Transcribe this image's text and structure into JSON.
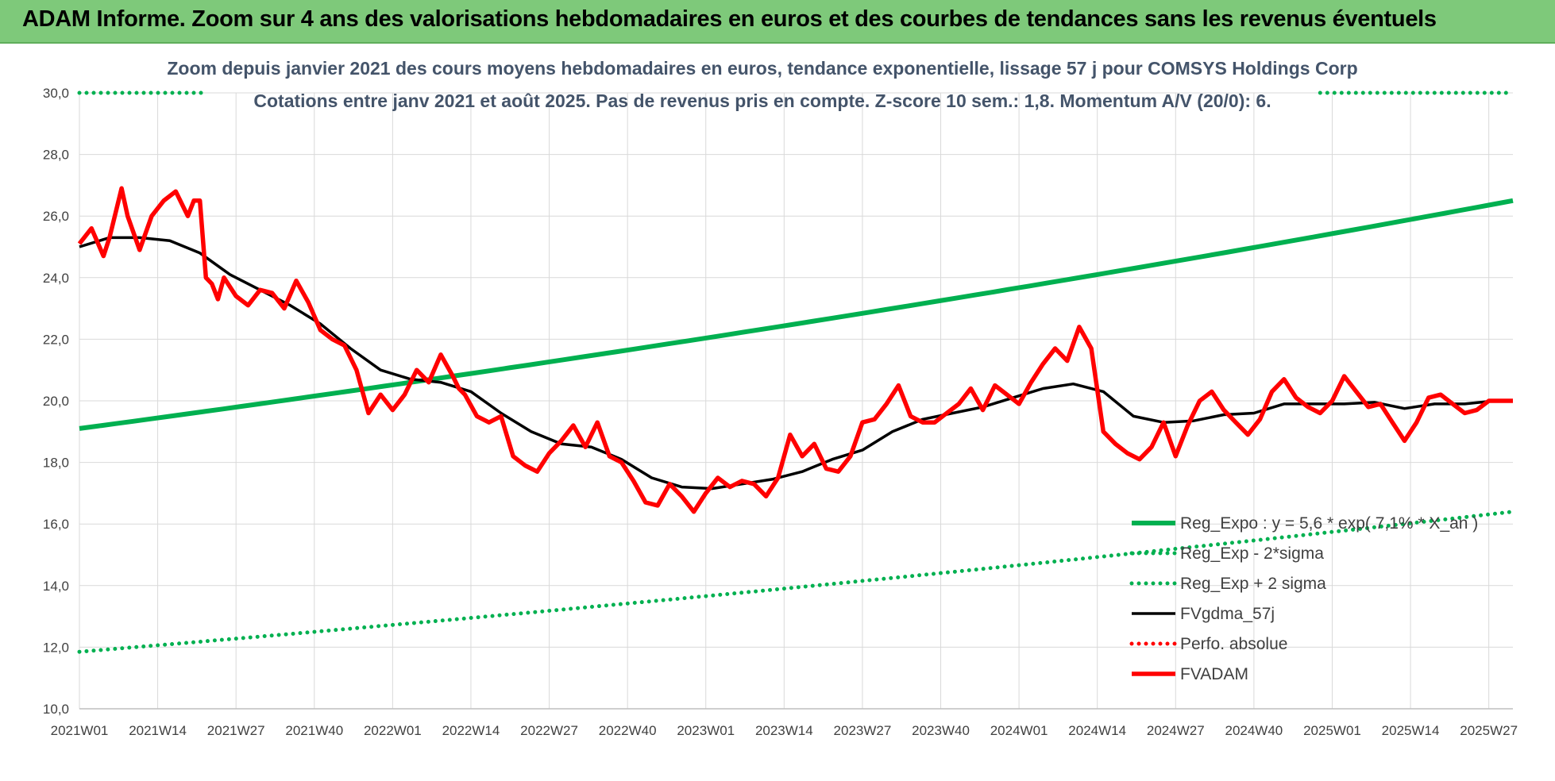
{
  "banner": {
    "title": "ADAM Informe. Zoom sur 4 ans des valorisations hebdomadaires en euros et des courbes de tendances sans les revenus éventuels"
  },
  "chart_data": {
    "type": "line",
    "title_line1": "Zoom depuis janvier 2021 des cours moyens hebdomadaires en euros, tendance exponentielle, lissage 57 j pour COMSYS Holdings Corp",
    "title_line2": "Cotations entre janv 2021 et août 2025. Pas de revenus pris en compte. Z-score 10 sem.: 1,8. Momentum A/V (20/0): 6.",
    "xlabel": "",
    "ylabel": "",
    "ylim": [
      10,
      30
    ],
    "y_ticks": [
      "10,0",
      "12,0",
      "14,0",
      "16,0",
      "18,0",
      "20,0",
      "22,0",
      "24,0",
      "26,0",
      "28,0",
      "30,0"
    ],
    "x_ticks": [
      "2021W01",
      "2021W14",
      "2021W27",
      "2021W40",
      "2022W01",
      "2022W14",
      "2022W27",
      "2022W40",
      "2023W01",
      "2023W14",
      "2023W27",
      "2023W40",
      "2024W01",
      "2024W14",
      "2024W27",
      "2024W40",
      "2025W01",
      "2025W14",
      "2025W27"
    ],
    "x_range_weeks": [
      0,
      238
    ],
    "grid": true,
    "legend_position": "bottom-right",
    "series": [
      {
        "name": "Reg_Expo : y = 5,6 * exp( 7,1% * X_an )",
        "color": "#00b050",
        "style": "solid",
        "x": [
          0,
          238
        ],
        "values": [
          19.1,
          26.5
        ],
        "curve": "exponential"
      },
      {
        "name": "Reg_Exp - 2*sigma",
        "color": "#00b050",
        "style": "dotted",
        "x": [
          0,
          238
        ],
        "values": [
          11.85,
          16.4
        ],
        "curve": "exponential"
      },
      {
        "name": "Reg_Exp + 2 sigma",
        "color": "#00b050",
        "style": "dotted",
        "x": [
          0,
          21,
          206,
          238
        ],
        "values": [
          30.0,
          30.0,
          30.0,
          30.0
        ],
        "segments": [
          [
            0,
            21
          ],
          [
            206,
            238
          ]
        ]
      },
      {
        "name": "FVgdma_57j",
        "color": "#000000",
        "style": "solid",
        "x": [
          0,
          5,
          10,
          15,
          20,
          25,
          30,
          35,
          40,
          45,
          50,
          55,
          60,
          65,
          70,
          75,
          80,
          85,
          90,
          95,
          100,
          105,
          110,
          115,
          120,
          125,
          130,
          135,
          140,
          145,
          150,
          155,
          160,
          165,
          170,
          175,
          180,
          185,
          190,
          195,
          200,
          205,
          210,
          215,
          220,
          225,
          230,
          235,
          238
        ],
        "values": [
          25.0,
          25.3,
          25.3,
          25.2,
          24.8,
          24.1,
          23.6,
          23.1,
          22.5,
          21.7,
          21.0,
          20.7,
          20.6,
          20.3,
          19.6,
          19.0,
          18.6,
          18.5,
          18.1,
          17.5,
          17.2,
          17.15,
          17.3,
          17.45,
          17.7,
          18.1,
          18.4,
          19.0,
          19.4,
          19.6,
          19.8,
          20.1,
          20.4,
          20.55,
          20.3,
          19.5,
          19.3,
          19.35,
          19.55,
          19.6,
          19.9,
          19.9,
          19.9,
          19.95,
          19.75,
          19.9,
          19.9,
          20.0,
          20.0
        ]
      },
      {
        "name": "Perfo. absolue",
        "color": "#ff0000",
        "style": "dotted",
        "x": [],
        "values": []
      },
      {
        "name": "FVADAM",
        "color": "#ff0000",
        "style": "solid",
        "x": [
          0,
          2,
          4,
          5,
          7,
          8,
          10,
          12,
          14,
          16,
          18,
          19,
          20,
          21,
          22,
          23,
          24,
          26,
          28,
          30,
          32,
          34,
          36,
          38,
          40,
          42,
          44,
          46,
          48,
          50,
          52,
          54,
          56,
          58,
          60,
          62,
          63,
          64,
          66,
          68,
          70,
          72,
          74,
          76,
          78,
          80,
          82,
          84,
          86,
          88,
          90,
          92,
          94,
          96,
          98,
          100,
          102,
          104,
          106,
          108,
          110,
          112,
          114,
          116,
          118,
          120,
          122,
          124,
          126,
          128,
          130,
          132,
          134,
          136,
          138,
          140,
          142,
          144,
          146,
          148,
          150,
          152,
          154,
          156,
          158,
          160,
          162,
          164,
          166,
          168,
          170,
          172,
          174,
          176,
          178,
          180,
          182,
          184,
          186,
          188,
          190,
          192,
          194,
          196,
          198,
          200,
          202,
          204,
          206,
          208,
          210,
          212,
          214,
          216,
          218,
          220,
          222,
          224,
          226,
          228,
          230,
          232,
          234,
          236,
          238
        ],
        "values": [
          25.1,
          25.6,
          24.7,
          25.3,
          26.9,
          26.0,
          24.9,
          26.0,
          26.5,
          26.8,
          26.0,
          26.5,
          26.5,
          24.0,
          23.8,
          23.3,
          24.0,
          23.4,
          23.1,
          23.6,
          23.5,
          23.0,
          23.9,
          23.2,
          22.3,
          22.0,
          21.8,
          21.0,
          19.6,
          20.2,
          19.7,
          20.2,
          21.0,
          20.6,
          21.5,
          20.8,
          20.4,
          20.2,
          19.5,
          19.3,
          19.5,
          18.2,
          17.9,
          17.7,
          18.3,
          18.7,
          19.2,
          18.5,
          19.3,
          18.2,
          18.0,
          17.4,
          16.7,
          16.6,
          17.3,
          16.9,
          16.4,
          17.0,
          17.5,
          17.2,
          17.4,
          17.3,
          16.9,
          17.5,
          18.9,
          18.2,
          18.6,
          17.8,
          17.7,
          18.2,
          19.3,
          19.4,
          19.9,
          20.5,
          19.5,
          19.3,
          19.3,
          19.6,
          19.9,
          20.4,
          19.7,
          20.5,
          20.2,
          19.9,
          20.6,
          21.2,
          21.7,
          21.3,
          22.4,
          21.7,
          19.0,
          18.6,
          18.3,
          18.1,
          18.5,
          19.3,
          18.2,
          19.2,
          20.0,
          20.3,
          19.7,
          19.3,
          18.9,
          19.4,
          20.3,
          20.7,
          20.1,
          19.8,
          19.6,
          20.0,
          20.8,
          20.3,
          19.8,
          19.9,
          19.3,
          18.7,
          19.3,
          20.1,
          20.2,
          19.9,
          19.6,
          19.7,
          20.0,
          20.0,
          20.0
        ]
      }
    ]
  }
}
